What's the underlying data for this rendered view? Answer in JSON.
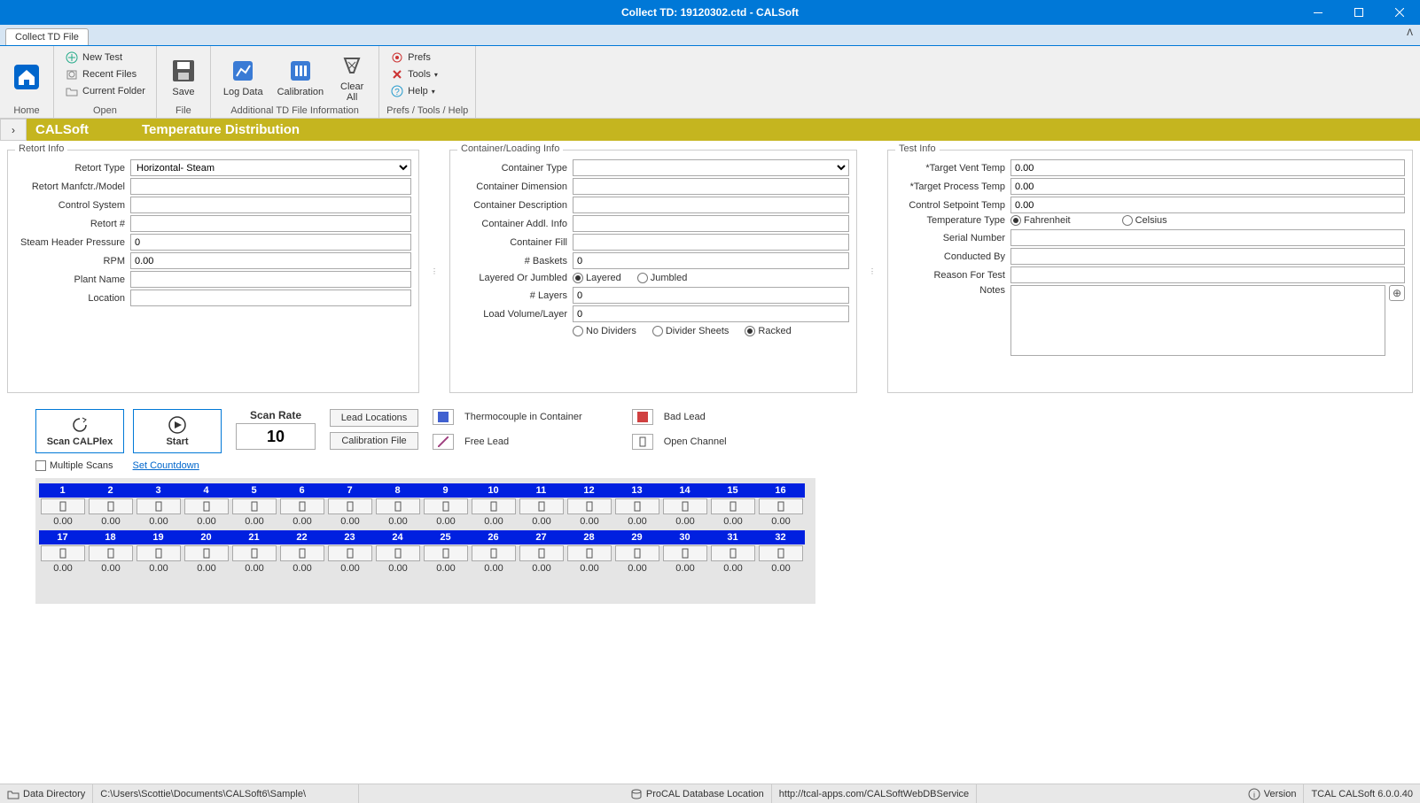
{
  "window": {
    "title": "Collect TD: 19120302.ctd - CALSoft"
  },
  "tab": {
    "label": "Collect TD File"
  },
  "ribbon": {
    "home_label": "Home",
    "open": {
      "new_test": "New Test",
      "recent_files": "Recent Files",
      "current_folder": "Current Folder",
      "group_label": "Open"
    },
    "file": {
      "save": "Save",
      "group_label": "File"
    },
    "additional": {
      "log_data": "Log Data",
      "calibration": "Calibration",
      "clear_all": "Clear\nAll",
      "group_label": "Additional TD File Information"
    },
    "prefs": {
      "prefs": "Prefs",
      "tools": "Tools",
      "help": "Help",
      "group_label": "Prefs / Tools / Help"
    }
  },
  "banner": {
    "app": "CALSoft",
    "module": "Temperature Distribution"
  },
  "retort": {
    "legend": "Retort Info",
    "type_label": "Retort Type",
    "type_value": "Horizontal- Steam",
    "model_label": "Retort Manfctr./Model",
    "model_value": "",
    "control_label": "Control System",
    "control_value": "",
    "num_label": "Retort #",
    "num_value": "",
    "steam_label": "Steam Header Pressure",
    "steam_value": "0",
    "rpm_label": "RPM",
    "rpm_value": "0.00",
    "plant_label": "Plant Name",
    "plant_value": "",
    "location_label": "Location",
    "location_value": ""
  },
  "container": {
    "legend": "Container/Loading Info",
    "type_label": "Container Type",
    "type_value": "",
    "dim_label": "Container Dimension",
    "dim_value": "",
    "desc_label": "Container Description",
    "desc_value": "",
    "addl_label": "Container Addl. Info",
    "addl_value": "",
    "fill_label": "Container Fill",
    "fill_value": "",
    "baskets_label": "# Baskets",
    "baskets_value": "0",
    "layered_label": "Layered Or Jumbled",
    "layered_opt": "Layered",
    "jumbled_opt": "Jumbled",
    "layers_label": "# Layers",
    "layers_value": "0",
    "volume_label": "Load Volume/Layer",
    "volume_value": "0",
    "nodiv_opt": "No Dividers",
    "divsheets_opt": "Divider Sheets",
    "racked_opt": "Racked"
  },
  "test": {
    "legend": "Test Info",
    "vent_label": "*Target Vent Temp",
    "vent_value": "0.00",
    "proc_label": "*Target Process Temp",
    "proc_value": "0.00",
    "setpoint_label": "Control Setpoint Temp",
    "setpoint_value": "0.00",
    "temptype_label": "Temperature Type",
    "fahrenheit": "Fahrenheit",
    "celsius": "Celsius",
    "serial_label": "Serial Number",
    "serial_value": "",
    "conducted_label": "Conducted By",
    "conducted_value": "",
    "reason_label": "Reason For Test",
    "reason_value": "",
    "notes_label": "Notes"
  },
  "scan": {
    "scan_calplex": "Scan CALPlex",
    "start": "Start",
    "rate_label": "Scan Rate",
    "rate_value": "10",
    "lead_locations": "Lead Locations",
    "calibration_file": "Calibration File",
    "multiple_scans": "Multiple Scans",
    "set_countdown": "Set Countdown",
    "legend_tc": "Thermocouple in Container",
    "legend_free": "Free Lead",
    "legend_bad": "Bad Lead",
    "legend_open": "Open Channel"
  },
  "channels": {
    "row1": [
      "1",
      "2",
      "3",
      "4",
      "5",
      "6",
      "7",
      "8",
      "9",
      "10",
      "11",
      "12",
      "13",
      "14",
      "15",
      "16"
    ],
    "row2": [
      "17",
      "18",
      "19",
      "20",
      "21",
      "22",
      "23",
      "24",
      "25",
      "26",
      "27",
      "28",
      "29",
      "30",
      "31",
      "32"
    ],
    "val": "0.00"
  },
  "statusbar": {
    "datadir_label": "Data Directory",
    "datadir_path": "C:\\Users\\Scottie\\Documents\\CALSoft6\\Sample\\",
    "db_label": "ProCAL Database Location",
    "db_url": "http://tcal-apps.com/CALSoftWebDBService",
    "version_label": "Version",
    "version_value": "TCAL CALSoft 6.0.0.40"
  }
}
